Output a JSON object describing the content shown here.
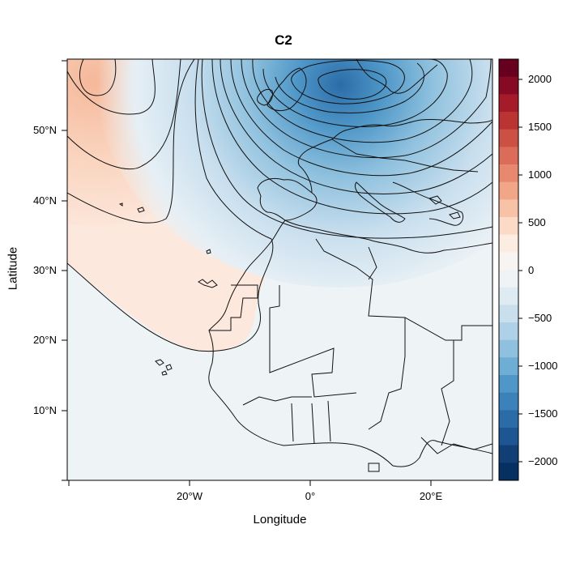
{
  "title": "C2",
  "xlabel": "Longitude",
  "ylabel": "Latitude",
  "x_ticks": [
    "20°W",
    "0°",
    "20°E"
  ],
  "y_ticks": [
    "10°N",
    "20°N",
    "30°N",
    "40°N",
    "50°N"
  ],
  "colorbar": {
    "ticks": [
      "2000",
      "1500",
      "1000",
      "500",
      "0",
      "−500",
      "−1000",
      "−1500",
      "−2000"
    ],
    "colors": [
      "#67001f",
      "#870a24",
      "#a51b2a",
      "#ba3434",
      "#cc5145",
      "#db6c59",
      "#e8896f",
      "#f2a688",
      "#f8c2a6",
      "#fbdac8",
      "#fcece2",
      "#f8f4f1",
      "#eff3f6",
      "#dfebf3",
      "#c9dfee",
      "#afd1e7",
      "#8fc1de",
      "#6eadd4",
      "#4f97c8",
      "#3a82b9",
      "#2b6ca8",
      "#1d5693",
      "#113e75",
      "#053061"
    ]
  },
  "chart_data": {
    "type": "heatmap",
    "title": "C2",
    "xlabel": "Longitude",
    "ylabel": "Latitude",
    "xlim": [
      -40,
      30
    ],
    "ylim": [
      0,
      60
    ],
    "clim": [
      -2200,
      2200
    ],
    "x_ticks": [
      -20,
      0,
      20
    ],
    "y_ticks": [
      10,
      20,
      30,
      40,
      50
    ],
    "features": [
      {
        "name": "negative anomaly centre",
        "lon": 5,
        "lat": 56,
        "value": -2100
      },
      {
        "name": "positive anomaly centre",
        "lon": -35,
        "lat": 57,
        "value": 550
      }
    ]
  }
}
